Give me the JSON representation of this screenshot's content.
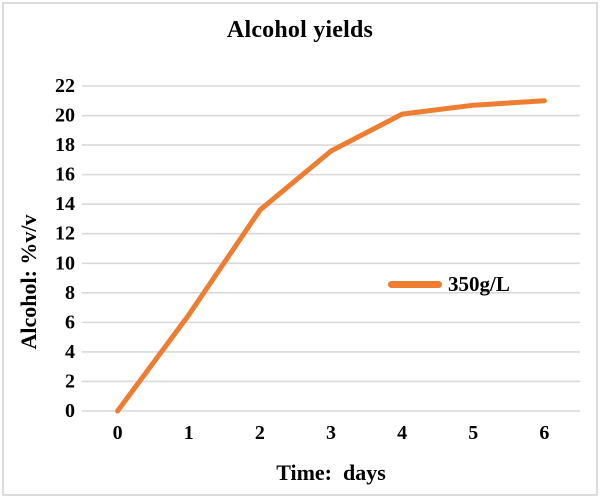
{
  "title": "Alcohol yields",
  "axes": {
    "x_title": "Time:  days",
    "y_title": "Alcohol: %v/v"
  },
  "legend": {
    "items": [
      {
        "label": "350g/L",
        "color": "#ED7D31"
      }
    ]
  },
  "chart_data": {
    "type": "line",
    "title": "Alcohol yields",
    "xlabel": "Time:  days",
    "ylabel": "Alcohol: %v/v",
    "x": [
      0,
      1,
      2,
      3,
      4,
      5,
      6
    ],
    "series": [
      {
        "name": "350g/L",
        "color": "#ED7D31",
        "values": [
          0,
          6.5,
          13.6,
          17.6,
          20.1,
          20.7,
          21
        ]
      }
    ],
    "ylim": [
      0,
      22
    ],
    "ytick_step": 2,
    "grid": "horizontal",
    "legend_position": "middle-right"
  },
  "colors": {
    "line": "#ED7D31",
    "gridline": "#D9D9D9",
    "frame_border": "#DCDCDC",
    "text": "#000000",
    "background": "#FFFFFF"
  }
}
